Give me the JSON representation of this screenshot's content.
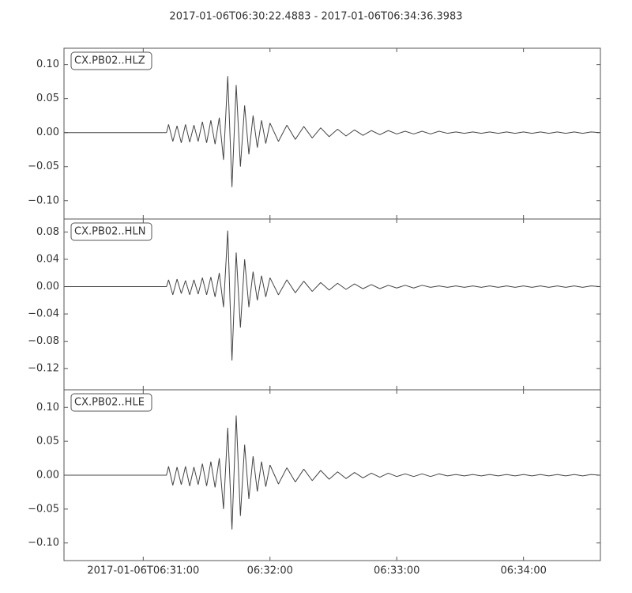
{
  "chart_data": [
    {
      "type": "line",
      "title": "2017-01-06T06:30:22.4883  -  2017-01-06T06:34:36.3983",
      "xlim": [
        22.4883,
        276.3983
      ],
      "x": [
        22.5,
        71,
        72,
        74,
        76,
        78,
        80,
        82,
        84,
        86,
        88,
        90,
        92,
        94,
        96,
        98,
        100,
        102,
        104,
        106,
        108,
        110,
        112,
        114,
        116,
        118,
        120,
        124,
        128,
        132,
        136,
        140,
        144,
        148,
        152,
        156,
        160,
        164,
        168,
        172,
        176,
        180,
        184,
        188,
        192,
        196,
        200,
        204,
        208,
        212,
        216,
        220,
        224,
        228,
        232,
        236,
        240,
        244,
        248,
        252,
        256,
        260,
        264,
        268,
        272,
        276
      ],
      "series": [
        {
          "name": "CX.PB02..HLZ",
          "color": "#444444",
          "values": [
            0,
            0,
            0.012,
            -0.013,
            0.01,
            -0.015,
            0.012,
            -0.014,
            0.011,
            -0.013,
            0.016,
            -0.015,
            0.018,
            -0.017,
            0.022,
            -0.04,
            0.083,
            -0.08,
            0.07,
            -0.05,
            0.04,
            -0.032,
            0.025,
            -0.022,
            0.018,
            -0.016,
            0.014,
            -0.013,
            0.011,
            -0.01,
            0.009,
            -0.008,
            0.007,
            -0.006,
            0.005,
            -0.005,
            0.004,
            -0.004,
            0.003,
            -0.003,
            0.003,
            -0.002,
            0.002,
            -0.002,
            0.002,
            -0.002,
            0.002,
            -0.001,
            0.001,
            -0.001,
            0.001,
            -0.001,
            0.001,
            -0.001,
            0.001,
            -0.001,
            0.001,
            -0.001,
            0.001,
            -0.001,
            0.001,
            -0.001,
            0.001,
            -0.001,
            0.001,
            0
          ]
        }
      ],
      "ylim": [
        -0.127,
        0.124
      ],
      "yticks": [
        {
          "value": 0.1,
          "label": "0.10"
        },
        {
          "value": 0.05,
          "label": "0.05"
        },
        {
          "value": 0,
          "label": "0.00"
        },
        {
          "value": -0.05,
          "label": "−0.05"
        },
        {
          "value": -0.1,
          "label": "−0.10"
        }
      ]
    },
    {
      "type": "line",
      "xlim": [
        22.4883,
        276.3983
      ],
      "x": [
        22.5,
        71,
        72,
        74,
        76,
        78,
        80,
        82,
        84,
        86,
        88,
        90,
        92,
        94,
        96,
        98,
        100,
        102,
        104,
        106,
        108,
        110,
        112,
        114,
        116,
        118,
        120,
        124,
        128,
        132,
        136,
        140,
        144,
        148,
        152,
        156,
        160,
        164,
        168,
        172,
        176,
        180,
        184,
        188,
        192,
        196,
        200,
        204,
        208,
        212,
        216,
        220,
        224,
        228,
        232,
        236,
        240,
        244,
        248,
        252,
        256,
        260,
        264,
        268,
        272,
        276
      ],
      "series": [
        {
          "name": "CX.PB02..HLN",
          "color": "#444444",
          "values": [
            0,
            0,
            0.01,
            -0.012,
            0.011,
            -0.01,
            0.009,
            -0.012,
            0.01,
            -0.011,
            0.013,
            -0.012,
            0.014,
            -0.015,
            0.02,
            -0.03,
            0.082,
            -0.108,
            0.05,
            -0.06,
            0.04,
            -0.03,
            0.022,
            -0.02,
            0.016,
            -0.015,
            0.013,
            -0.012,
            0.01,
            -0.009,
            0.008,
            -0.007,
            0.006,
            -0.005,
            0.005,
            -0.004,
            0.004,
            -0.003,
            0.003,
            -0.003,
            0.002,
            -0.002,
            0.002,
            -0.002,
            0.002,
            -0.001,
            0.001,
            -0.001,
            0.001,
            -0.001,
            0.001,
            -0.001,
            0.001,
            -0.001,
            0.001,
            -0.001,
            0.001,
            -0.001,
            0.001,
            -0.001,
            0.001,
            -0.001,
            0.001,
            -0.001,
            0.001,
            0
          ]
        }
      ],
      "ylim": [
        -0.151,
        0.099
      ],
      "yticks": [
        {
          "value": 0.08,
          "label": "0.08"
        },
        {
          "value": 0.04,
          "label": "0.04"
        },
        {
          "value": 0,
          "label": "0.00"
        },
        {
          "value": -0.04,
          "label": "−0.04"
        },
        {
          "value": -0.08,
          "label": "−0.08"
        },
        {
          "value": -0.12,
          "label": "−0.12"
        }
      ]
    },
    {
      "type": "line",
      "xlim": [
        22.4883,
        276.3983
      ],
      "x": [
        22.5,
        71,
        72,
        74,
        76,
        78,
        80,
        82,
        84,
        86,
        88,
        90,
        92,
        94,
        96,
        98,
        100,
        102,
        104,
        106,
        108,
        110,
        112,
        114,
        116,
        118,
        120,
        124,
        128,
        132,
        136,
        140,
        144,
        148,
        152,
        156,
        160,
        164,
        168,
        172,
        176,
        180,
        184,
        188,
        192,
        196,
        200,
        204,
        208,
        212,
        216,
        220,
        224,
        228,
        232,
        236,
        240,
        244,
        248,
        252,
        256,
        260,
        264,
        268,
        272,
        276
      ],
      "series": [
        {
          "name": "CX.PB02..HLE",
          "color": "#444444",
          "values": [
            0,
            0,
            0.013,
            -0.015,
            0.012,
            -0.014,
            0.013,
            -0.016,
            0.012,
            -0.014,
            0.017,
            -0.016,
            0.02,
            -0.018,
            0.025,
            -0.05,
            0.07,
            -0.08,
            0.088,
            -0.06,
            0.045,
            -0.035,
            0.028,
            -0.024,
            0.02,
            -0.017,
            0.015,
            -0.013,
            0.011,
            -0.01,
            0.009,
            -0.008,
            0.007,
            -0.006,
            0.005,
            -0.005,
            0.004,
            -0.004,
            0.003,
            -0.003,
            0.003,
            -0.002,
            0.002,
            -0.002,
            0.002,
            -0.002,
            0.002,
            -0.001,
            0.001,
            -0.001,
            0.001,
            -0.001,
            0.001,
            -0.001,
            0.001,
            -0.001,
            0.001,
            -0.001,
            0.001,
            -0.001,
            0.001,
            -0.001,
            0.001,
            -0.001,
            0.001,
            0
          ]
        }
      ],
      "ylim": [
        -0.126,
        0.126
      ],
      "yticks": [
        {
          "value": 0.1,
          "label": "0.10"
        },
        {
          "value": 0.05,
          "label": "0.05"
        },
        {
          "value": 0,
          "label": "0.00"
        },
        {
          "value": -0.05,
          "label": "−0.05"
        },
        {
          "value": -0.1,
          "label": "−0.10"
        }
      ],
      "xticks": [
        {
          "value": 60,
          "label": "2017-01-06T06:31:00"
        },
        {
          "value": 120,
          "label": "06:32:00"
        },
        {
          "value": 180,
          "label": "06:33:00"
        },
        {
          "value": 240,
          "label": "06:34:00"
        }
      ]
    }
  ]
}
